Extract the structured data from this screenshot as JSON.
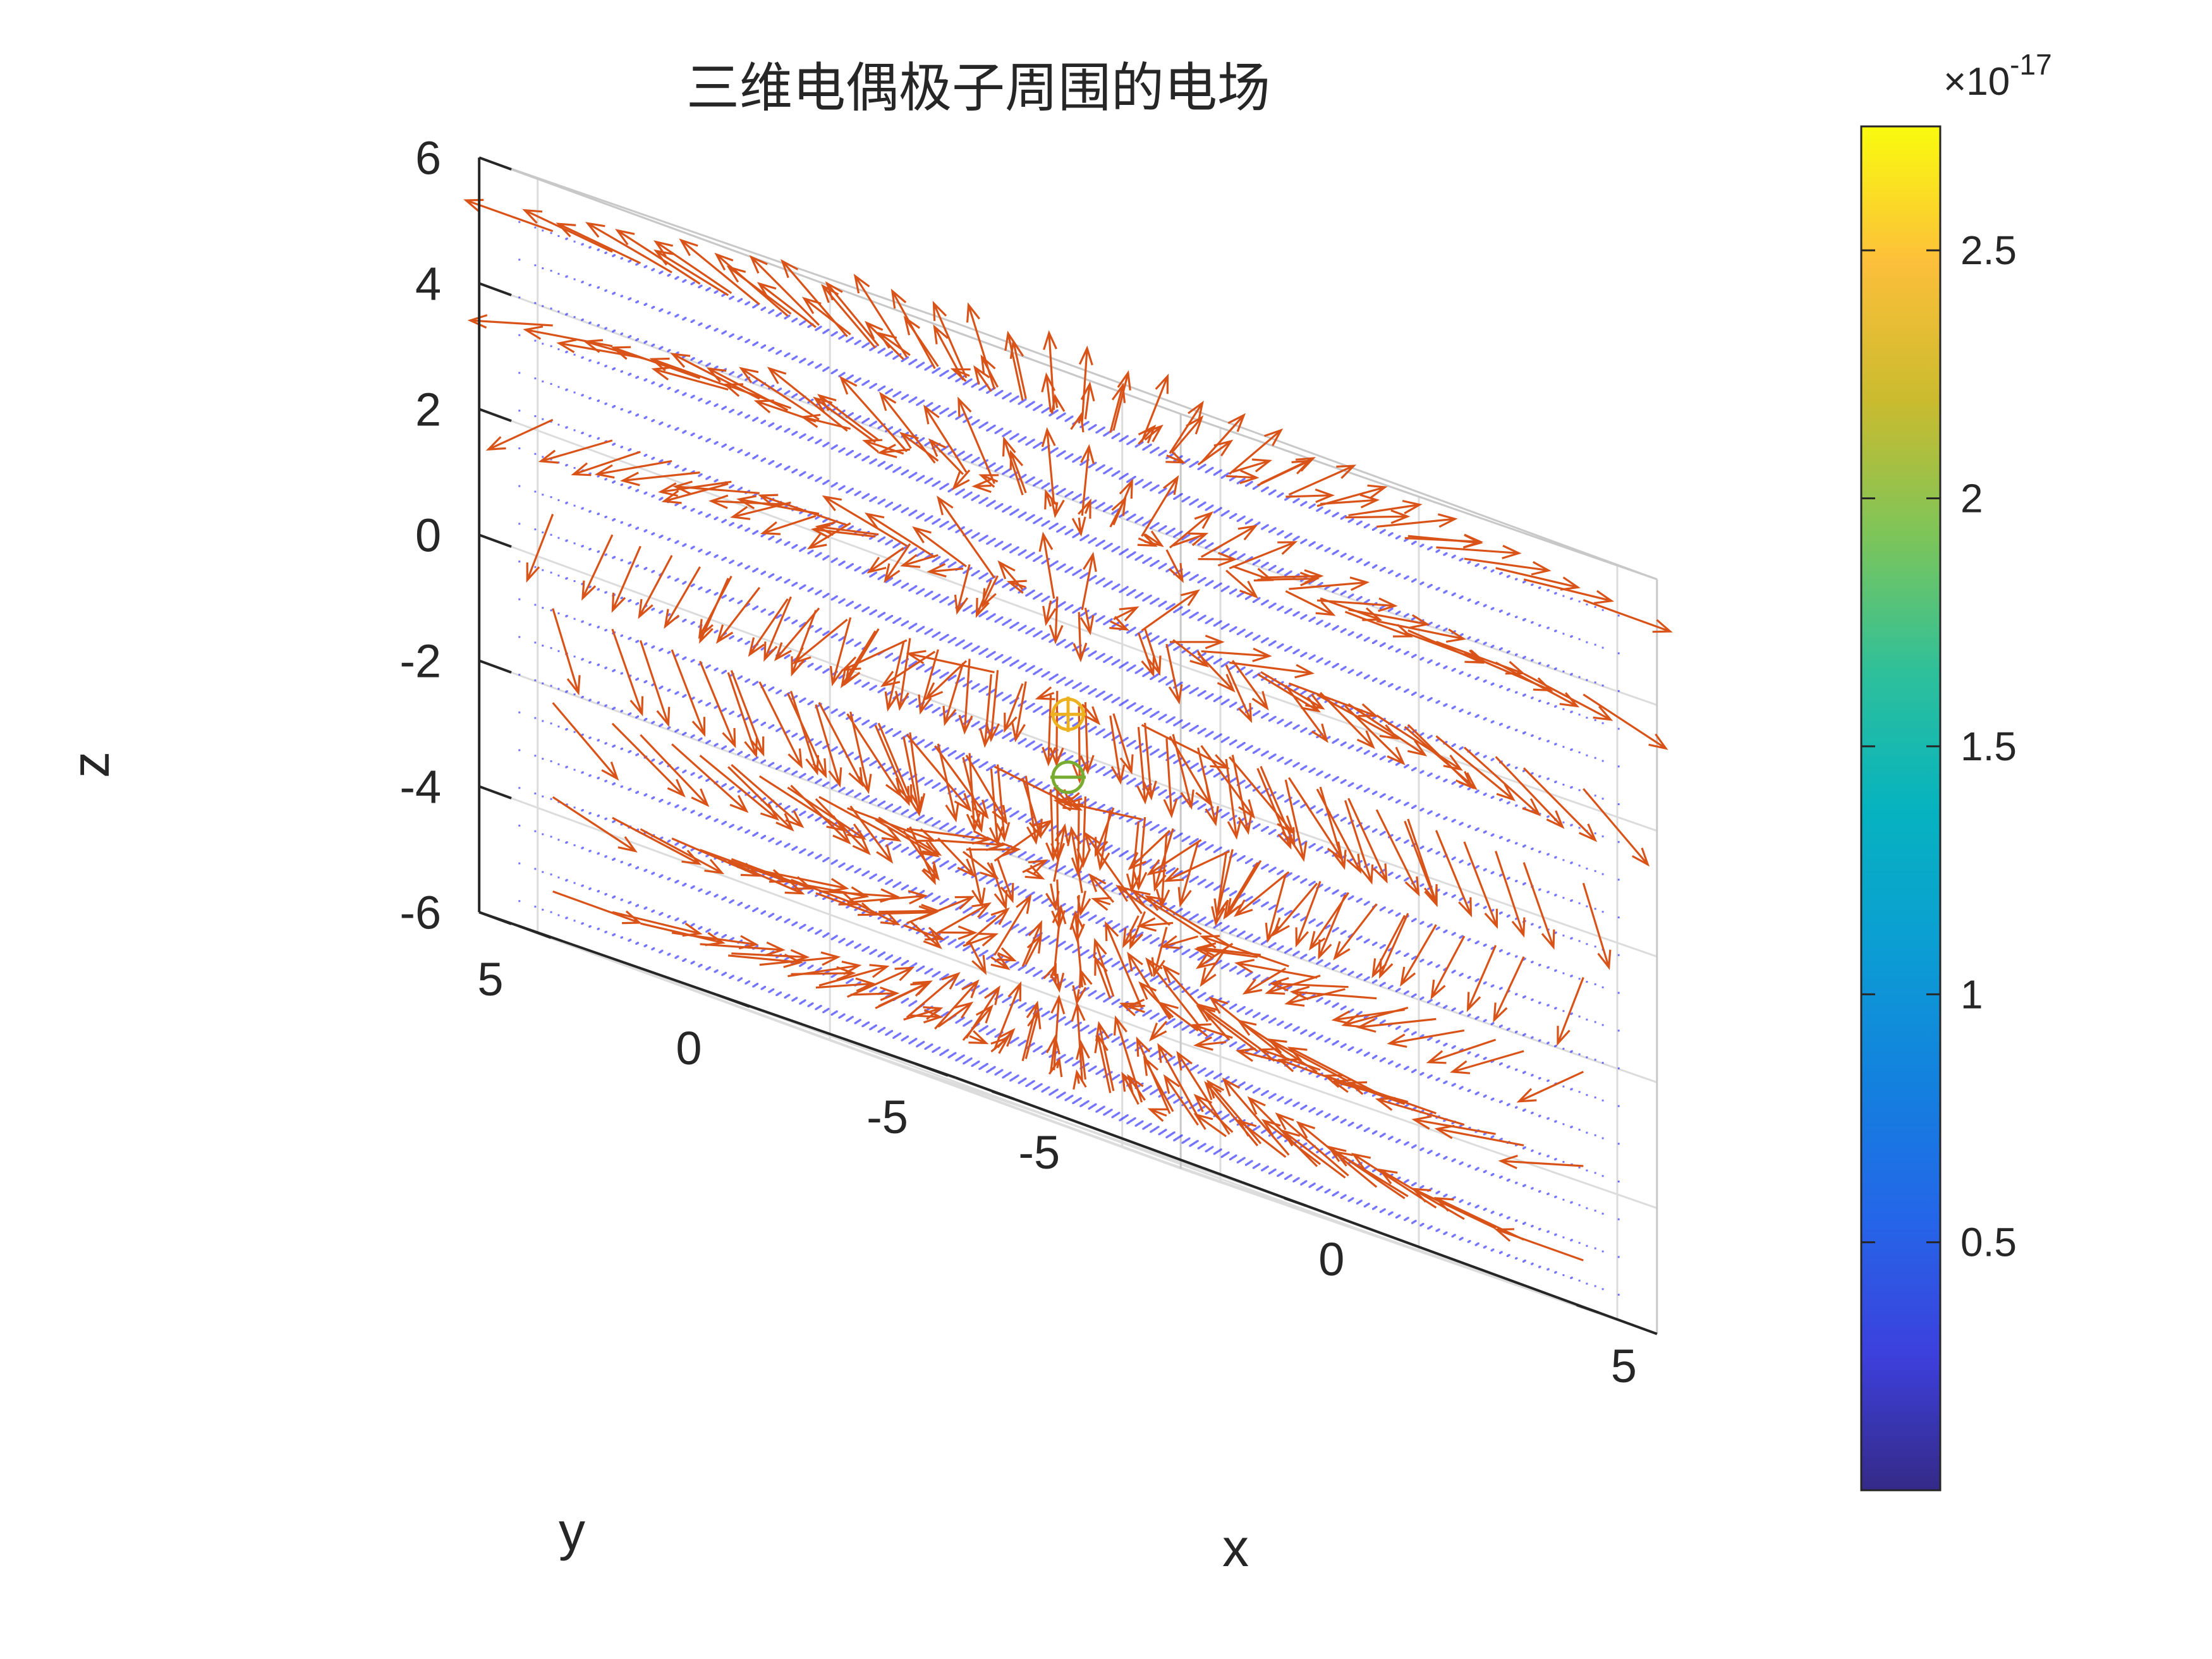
{
  "chart_data": {
    "type": "3d-vector-field",
    "title": "三维电偶极子周围的电场",
    "xlabel": "x",
    "ylabel": "y",
    "zlabel": "z",
    "xlim": [
      -6,
      6
    ],
    "ylim": [
      -6,
      6
    ],
    "zlim": [
      -6,
      6
    ],
    "x_ticks": [
      "-5",
      "0",
      "5"
    ],
    "y_ticks": [
      "-5",
      "0",
      "5"
    ],
    "z_ticks": [
      "-6",
      "-4",
      "-2",
      "0",
      "2",
      "4",
      "6"
    ],
    "grid": true,
    "view": {
      "azimuth": -37.5,
      "elevation": 30
    },
    "charges": [
      {
        "sign": "+",
        "x": 0,
        "y": 0,
        "z": 0.5,
        "color": "#EDB120"
      },
      {
        "sign": "-",
        "x": 0,
        "y": 0,
        "z": -0.5,
        "color": "#77AC30"
      }
    ],
    "sample_points_color": "#0000FF",
    "arrow_color": "#D95319",
    "arrow_grid": {
      "step": 1.5,
      "range": [
        -5.25,
        5.25
      ]
    },
    "colorbar": {
      "colormap": "parula",
      "range": [
        0.0,
        2.75
      ],
      "exponent_label": "×10",
      "exponent_power": "-17",
      "ticks": [
        "0.5",
        "1",
        "1.5",
        "2",
        "2.5"
      ],
      "tick_values": [
        0.5,
        1.0,
        1.5,
        2.0,
        2.5
      ]
    }
  }
}
